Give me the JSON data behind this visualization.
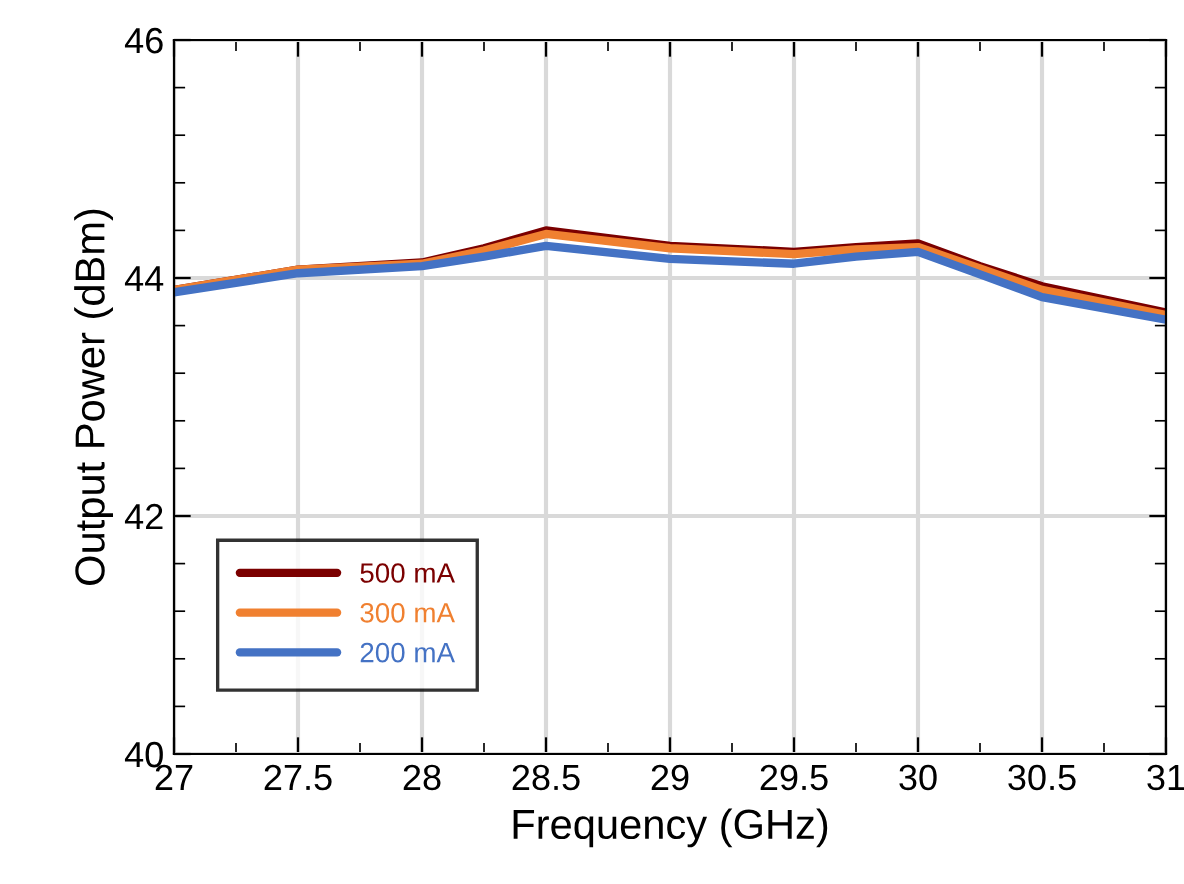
{
  "chart_data": {
    "type": "line",
    "xlabel": "Frequency (GHz)",
    "ylabel": "Output Power (dBm)",
    "x": [
      27,
      27.5,
      28,
      28.25,
      28.5,
      29,
      29.5,
      29.75,
      30,
      30.25,
      30.5,
      31
    ],
    "series": [
      {
        "name": "500 mA",
        "color": "#7b0000",
        "values": [
          43.9,
          44.07,
          44.13,
          44.25,
          44.4,
          44.27,
          44.22,
          44.26,
          44.29,
          44.1,
          43.93,
          43.71
        ]
      },
      {
        "name": "300 mA",
        "color": "#f08030",
        "values": [
          43.9,
          44.07,
          44.12,
          44.23,
          44.37,
          44.25,
          44.2,
          44.24,
          44.26,
          44.08,
          43.9,
          43.69
        ]
      },
      {
        "name": "200 mA",
        "color": "#4472c4",
        "values": [
          43.88,
          44.04,
          44.1,
          44.18,
          44.27,
          44.16,
          44.12,
          44.18,
          44.22,
          44.03,
          43.84,
          43.65
        ]
      }
    ],
    "xlim": [
      27,
      31
    ],
    "ylim": [
      40,
      46
    ],
    "xticks": [
      27,
      {
        "value": 27.25,
        "label": null
      },
      27.5,
      {
        "value": 27.75,
        "label": null
      },
      28,
      {
        "value": 28.25,
        "label": null
      },
      28.5,
      {
        "value": 28.75,
        "label": null
      },
      29,
      {
        "value": 29.25,
        "label": null
      },
      29.5,
      {
        "value": 29.75,
        "label": null
      },
      30,
      {
        "value": 30.25,
        "label": null
      },
      30.5,
      {
        "value": 30.75,
        "label": null
      },
      31
    ],
    "yticks": [
      40,
      {
        "value": 40.4,
        "label": null
      },
      {
        "value": 40.8,
        "label": null
      },
      {
        "value": 41.2,
        "label": null
      },
      {
        "value": 41.6,
        "label": null
      },
      42,
      {
        "value": 42.4,
        "label": null
      },
      {
        "value": 42.8,
        "label": null
      },
      {
        "value": 43.2,
        "label": null
      },
      {
        "value": 43.6,
        "label": null
      },
      44,
      {
        "value": 44.4,
        "label": null
      },
      {
        "value": 44.8,
        "label": null
      },
      {
        "value": 45.2,
        "label": null
      },
      {
        "value": 45.6,
        "label": null
      },
      46
    ],
    "grid": true,
    "legend": "bottom left",
    "marker": "none",
    "line_style": "solid"
  }
}
